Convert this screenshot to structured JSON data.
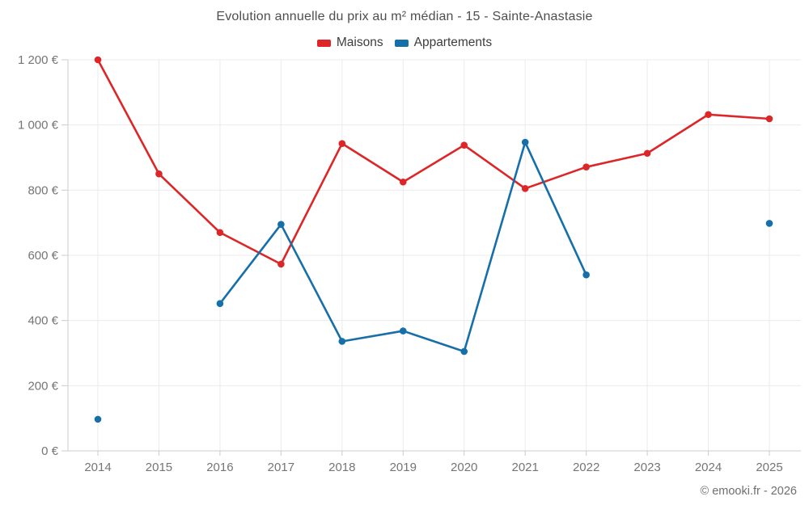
{
  "footer": {
    "copyright": "© emooki.fr - 2026"
  },
  "chart_data": {
    "type": "line",
    "title": "Evolution annuelle du prix au m² médian - 15 - Sainte-Anastasie",
    "x_categories": [
      "2014",
      "2015",
      "2016",
      "2017",
      "2018",
      "2019",
      "2020",
      "2021",
      "2022",
      "2023",
      "2024",
      "2025"
    ],
    "series": [
      {
        "name": "Maisons",
        "color": "#dc2627",
        "values": [
          1200,
          850,
          670,
          573,
          943,
          825,
          938,
          805,
          871,
          913,
          1032,
          1019
        ]
      },
      {
        "name": "Appartements",
        "color": "#166fa8",
        "values": [
          97,
          null,
          452,
          695,
          336,
          368,
          305,
          947,
          540,
          null,
          null,
          698
        ]
      }
    ],
    "ylim": [
      0,
      1200
    ],
    "ytick_step": 200,
    "ytick_labels": [
      "0 €",
      "200 €",
      "400 €",
      "600 €",
      "800 €",
      "1 000 €",
      "1 200 €"
    ],
    "xlabel": "",
    "ylabel": "",
    "grid": true,
    "legend_position": "top",
    "colors": {
      "grid": "#ebebeb",
      "axis": "#cccccc",
      "tick_text": "#757575"
    }
  }
}
